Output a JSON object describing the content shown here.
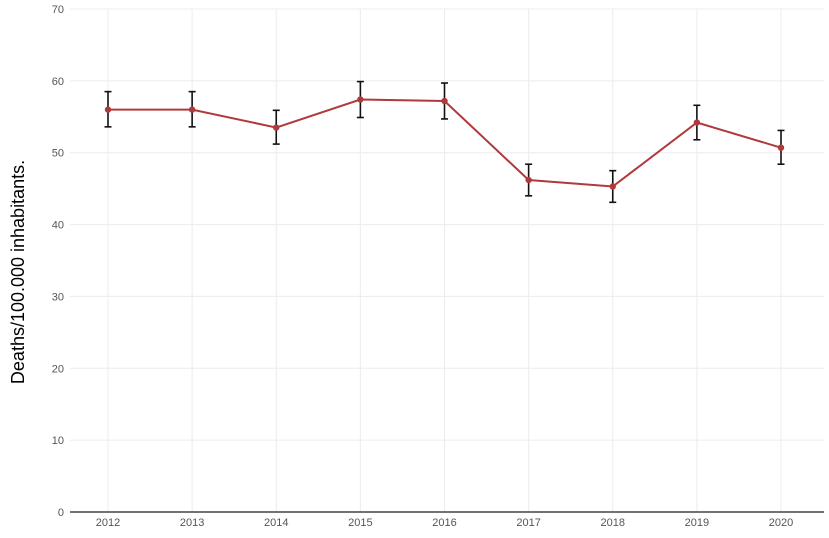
{
  "chart_data": {
    "type": "line",
    "title": "",
    "xlabel": "",
    "ylabel": "Deaths/100.000 inhabitants.",
    "ylim": [
      0,
      70
    ],
    "yticks": [
      0,
      10,
      20,
      30,
      40,
      50,
      60,
      70
    ],
    "grid": true,
    "categories": [
      "2012",
      "2013",
      "2014",
      "2015",
      "2016",
      "2017",
      "2018",
      "2019",
      "2020"
    ],
    "series": [
      {
        "values": [
          56.0,
          56.0,
          53.5,
          57.4,
          57.2,
          46.2,
          45.3,
          54.2,
          50.7
        ],
        "error_lower": [
          53.6,
          53.6,
          51.2,
          54.9,
          54.7,
          44.0,
          43.1,
          51.8,
          48.4
        ],
        "error_upper": [
          58.5,
          58.5,
          55.9,
          59.9,
          59.7,
          48.4,
          47.5,
          56.6,
          53.1
        ],
        "color": "#b0393b"
      }
    ]
  }
}
